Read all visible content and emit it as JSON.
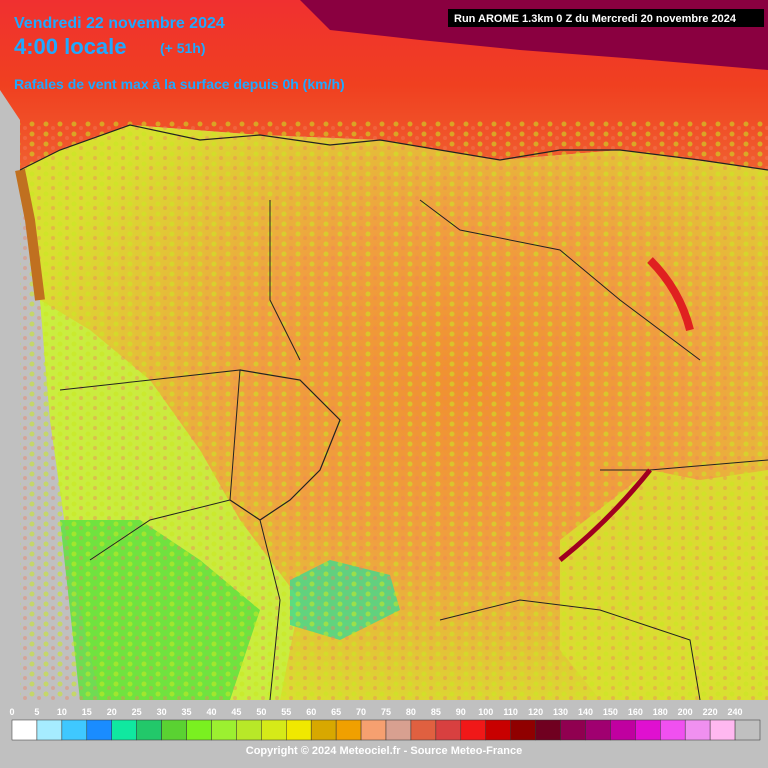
{
  "header": {
    "date": "Vendredi 22 novembre 2024",
    "time": "4:00 locale",
    "offset": "(+ 51h)",
    "subtitle": "Rafales de vent max à la surface depuis 0h (km/h)",
    "run": "Run AROME 1.3km 0 Z du Mercredi 20 novembre 2024"
  },
  "legend": {
    "ticks": [
      0,
      5,
      10,
      15,
      20,
      25,
      30,
      35,
      40,
      45,
      50,
      55,
      60,
      65,
      70,
      75,
      80,
      85,
      90,
      100,
      110,
      120,
      130,
      140,
      150,
      160,
      180,
      200,
      220,
      240
    ],
    "colors": [
      "#ffffff",
      "#a6ecff",
      "#3fc8ff",
      "#1a8cff",
      "#10e8a0",
      "#22c86a",
      "#5ad232",
      "#7af020",
      "#9cf030",
      "#b8e828",
      "#d6ea18",
      "#f0e800",
      "#d8a800",
      "#f0a000",
      "#f6a070",
      "#d8a090",
      "#e06040",
      "#d84040",
      "#f01818",
      "#c80000",
      "#900000",
      "#700020",
      "#900050",
      "#a00070",
      "#c000a0",
      "#e010d0",
      "#f050f0",
      "#f090f0",
      "#ffb8f0",
      "#c0c0c0"
    ]
  },
  "footer": {
    "copyright": "Copyright © 2024 Meteociel.fr - Source Meteo-France"
  }
}
